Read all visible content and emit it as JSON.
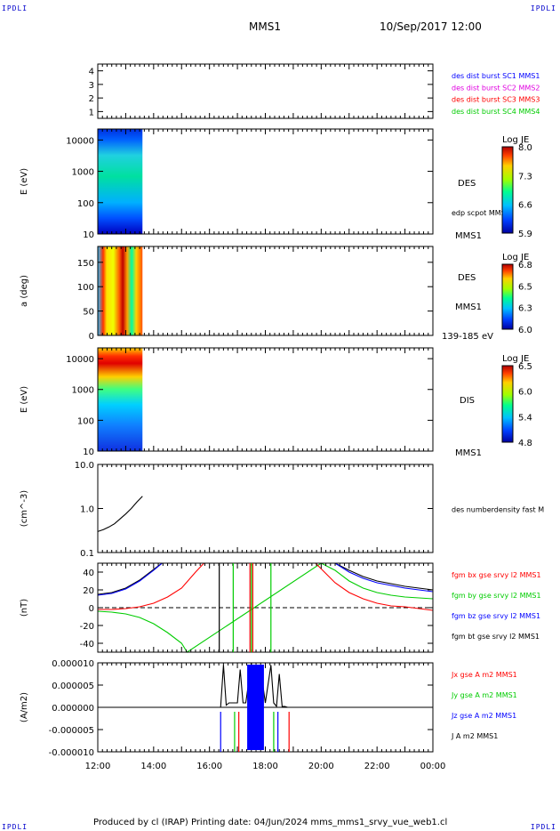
{
  "corner_label": "IPDLI",
  "header": {
    "mission": "MMS1",
    "datetime": "10/Sep/2017 12:00"
  },
  "footer": "Produced by cl (IRAP)   Printing date: 04/Jun/2024   mms_mms1_srvy_vue_web1.cl",
  "colors": {
    "blue": "#0000ff",
    "magenta": "#e000e0",
    "red": "#ff0000",
    "green": "#00cc00",
    "black": "#000000"
  },
  "x_axis": {
    "ticks": [
      "12:00",
      "14:00",
      "16:00",
      "18:00",
      "20:00",
      "22:00",
      "00:00"
    ]
  },
  "chart_data": [
    {
      "type": "timeline",
      "yticks": [
        "1",
        "2",
        "3",
        "4"
      ],
      "legend": [
        {
          "text": "des dist burst SC1 MMS1",
          "color": "#0000ff"
        },
        {
          "text": "des dist burst SC2 MMS2",
          "color": "#e000e0"
        },
        {
          "text": "des dist burst SC3 MMS3",
          "color": "#ff0000"
        },
        {
          "text": "des dist burst SC4 MMS4",
          "color": "#00cc00"
        }
      ]
    },
    {
      "type": "heatmap",
      "ylabel": "E (eV)",
      "yticks": [
        "10",
        "100",
        "1000",
        "10000"
      ],
      "scale": "log",
      "data_extent_hours": [
        0,
        1.6
      ],
      "right_labels": [
        "DES",
        "edp scpot MMS1",
        "MMS1"
      ],
      "colorbar": {
        "title": "Log JE",
        "ticks": [
          "8.0",
          "7.3",
          "6.6",
          "5.9"
        ]
      }
    },
    {
      "type": "heatmap",
      "ylabel": "a (deg)",
      "yticks": [
        "0",
        "50",
        "100",
        "150"
      ],
      "data_extent_hours": [
        0,
        1.6
      ],
      "right_labels": [
        "DES",
        "MMS1",
        "139-185 eV"
      ],
      "colorbar": {
        "title": "Log JE",
        "ticks": [
          "6.8",
          "6.5",
          "6.3",
          "6.0"
        ]
      }
    },
    {
      "type": "heatmap",
      "ylabel": "E (eV)",
      "yticks": [
        "10",
        "100",
        "1000",
        "10000"
      ],
      "scale": "log",
      "data_extent_hours": [
        0,
        1.6
      ],
      "right_labels": [
        "DIS",
        "MMS1"
      ],
      "colorbar": {
        "title": "Log JE",
        "ticks": [
          "6.5",
          "6.0",
          "5.4",
          "4.8"
        ]
      }
    },
    {
      "type": "line",
      "ylabel": "(cm^-3)",
      "yticks": [
        "0.1",
        "1.0",
        "10.0"
      ],
      "scale": "log",
      "ylim": [
        0.1,
        10
      ],
      "legend": [
        {
          "text": "des numberdensity fast M",
          "color": "#000000"
        }
      ],
      "series": [
        {
          "color": "#000000",
          "x": [
            0,
            0.2,
            0.4,
            0.6,
            0.8,
            1.0,
            1.2,
            1.4,
            1.6
          ],
          "y": [
            0.3,
            0.33,
            0.38,
            0.45,
            0.58,
            0.75,
            1.0,
            1.4,
            1.9
          ]
        }
      ]
    },
    {
      "type": "line",
      "ylabel": "(nT)",
      "yticks": [
        "-40",
        "-20",
        "0",
        "20",
        "40"
      ],
      "ylim": [
        -50,
        50
      ],
      "legend": [
        {
          "text": "fgm bx gse srvy l2 MMS1",
          "color": "#ff0000"
        },
        {
          "text": "fgm by gse srvy l2 MMS1",
          "color": "#00cc00"
        },
        {
          "text": "fgm bz gse srvy l2 MMS1",
          "color": "#0000ff"
        },
        {
          "text": "fgm bt gse srvy l2 MMS1",
          "color": "#000000"
        }
      ],
      "series": [
        {
          "color": "#000000",
          "x": [
            0,
            0.5,
            1.0,
            1.5,
            2.0,
            2.3,
            8.5,
            9.0,
            9.5,
            10.0,
            10.5,
            11.0,
            11.5,
            12.0
          ],
          "y": [
            15,
            17,
            22,
            31,
            43,
            50,
            50,
            42,
            35,
            30,
            27,
            24,
            22,
            20
          ]
        },
        {
          "color": "#0000ff",
          "x": [
            0,
            0.5,
            1.0,
            1.5,
            2.0,
            2.3,
            8.5,
            9.0,
            9.5,
            10.0,
            10.5,
            11.0,
            11.5,
            12.0
          ],
          "y": [
            14,
            16,
            21,
            30,
            42,
            50,
            50,
            40,
            33,
            28,
            25,
            22,
            20,
            18
          ]
        },
        {
          "color": "#00cc00",
          "x": [
            0,
            0.5,
            1.0,
            1.5,
            2.0,
            2.5,
            3.0,
            3.2,
            8.0,
            8.5,
            9.0,
            9.5,
            10.0,
            10.5,
            11.0,
            11.5,
            12.0
          ],
          "y": [
            -4,
            -5,
            -7,
            -11,
            -18,
            -28,
            -40,
            -50,
            50,
            42,
            30,
            22,
            17,
            14,
            12,
            11,
            10
          ]
        },
        {
          "color": "#ff0000",
          "x": [
            0,
            0.5,
            1.0,
            1.5,
            2.0,
            2.5,
            3.0,
            3.5,
            3.8,
            7.8,
            8.5,
            9.0,
            9.5,
            10.0,
            10.5,
            11.0,
            11.5,
            12.0
          ],
          "y": [
            -2,
            -2,
            -1,
            1,
            5,
            12,
            22,
            40,
            50,
            50,
            28,
            17,
            10,
            5,
            2,
            1,
            -1,
            -3
          ]
        }
      ]
    },
    {
      "type": "line",
      "ylabel": "(A/m2)",
      "yticks": [
        "-0.000010",
        "-0.000005",
        "0.000000",
        "0.000005",
        "0.000010"
      ],
      "ylim": [
        -1e-05,
        1e-05
      ],
      "legend": [
        {
          "text": "Jx gse A m2 MMS1",
          "color": "#ff0000"
        },
        {
          "text": "Jy gse A m2 MMS1",
          "color": "#00cc00"
        },
        {
          "text": "Jz gse A m2 MMS1",
          "color": "#0000ff"
        },
        {
          "text": "J A m2 MMS1",
          "color": "#000000"
        }
      ],
      "series": [
        {
          "color": "#000000",
          "x": [
            0,
            4.4,
            4.5,
            4.6,
            4.7,
            5.0,
            5.1,
            5.2,
            5.3,
            5.5,
            5.6,
            5.8,
            5.9,
            6.0,
            6.2,
            6.3,
            6.4,
            6.5,
            6.6,
            6.7,
            6.8,
            12.0
          ],
          "y": [
            0,
            0,
            9.5e-06,
            5e-07,
            1e-06,
            1e-06,
            8.5e-06,
            1e-06,
            1e-06,
            1e-05,
            1e-06,
            1e-06,
            5.5e-06,
            1e-06,
            9.5e-06,
            1e-06,
            2e-07,
            7.5e-06,
            2e-07,
            2e-07,
            0,
            0
          ]
        }
      ]
    }
  ]
}
